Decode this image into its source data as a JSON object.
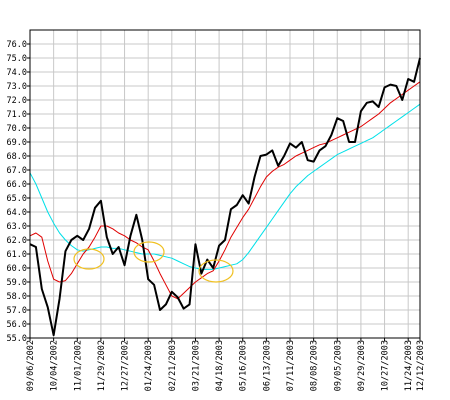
{
  "chart_data": {
    "type": "line",
    "categories": [
      "09/06/2002",
      null,
      null,
      null,
      "10/04/2002",
      null,
      null,
      null,
      "11/01/2002",
      null,
      null,
      null,
      "11/29/2002",
      null,
      null,
      null,
      "12/27/2002",
      null,
      null,
      null,
      "01/24/2003",
      null,
      null,
      null,
      "02/21/2003",
      null,
      null,
      null,
      "03/21/2003",
      null,
      null,
      null,
      "04/18/2003",
      null,
      null,
      null,
      "05/16/2003",
      null,
      null,
      null,
      "06/13/2003",
      null,
      null,
      null,
      "07/11/2003",
      null,
      null,
      null,
      "08/08/2003",
      null,
      null,
      null,
      "09/05/2003",
      null,
      null,
      null,
      "09/29/2003",
      null,
      null,
      null,
      "10/27/2003",
      null,
      null,
      null,
      "11/24/2003",
      null,
      "12/12/2003"
    ],
    "series": [
      {
        "color": "#00e0e8",
        "values": [
          66.8,
          66.0,
          65.0,
          64.0,
          63.2,
          62.5,
          62.0,
          61.6,
          61.3,
          61.2,
          61.3,
          61.4,
          61.5,
          61.5,
          61.4,
          61.4,
          61.3,
          61.2,
          61.1,
          61.0,
          61.0,
          61.0,
          60.9,
          60.8,
          60.7,
          60.5,
          60.3,
          60.1,
          60.0,
          59.9,
          59.9,
          59.9,
          60.0,
          60.1,
          60.2,
          60.3,
          60.6,
          61.1,
          61.7,
          62.3,
          62.9,
          63.5,
          64.1,
          64.7,
          65.3,
          65.8,
          66.2,
          66.6,
          66.9,
          67.2,
          67.5,
          67.8,
          68.1,
          68.3,
          68.5,
          68.7,
          68.9,
          69.1,
          69.3,
          69.6,
          69.9,
          70.2,
          70.5,
          70.8,
          71.1,
          71.4,
          71.7
        ]
      },
      {
        "color": "#e00000",
        "values": [
          62.3,
          62.5,
          62.2,
          60.5,
          59.2,
          59.0,
          59.1,
          59.6,
          60.3,
          61.0,
          61.5,
          62.2,
          63.0,
          63.0,
          62.8,
          62.5,
          62.3,
          62.0,
          61.8,
          61.5,
          61.3,
          60.5,
          59.6,
          58.8,
          58.0,
          57.8,
          58.2,
          58.6,
          59.0,
          59.3,
          59.6,
          59.8,
          60.5,
          61.3,
          62.2,
          62.9,
          63.6,
          64.2,
          65.0,
          65.8,
          66.5,
          66.9,
          67.2,
          67.4,
          67.7,
          68.0,
          68.2,
          68.4,
          68.6,
          68.8,
          68.9,
          69.1,
          69.3,
          69.5,
          69.7,
          69.9,
          70.1,
          70.4,
          70.7,
          71.0,
          71.4,
          71.8,
          72.1,
          72.4,
          72.7,
          73.0,
          73.3
        ]
      },
      {
        "color": "#000000",
        "values": [
          61.7,
          61.5,
          58.5,
          57.2,
          55.2,
          57.8,
          61.2,
          62.0,
          62.3,
          62.0,
          62.8,
          64.3,
          64.8,
          62.2,
          61.0,
          61.5,
          60.2,
          62.3,
          63.8,
          62.0,
          59.2,
          58.8,
          57.0,
          57.4,
          58.3,
          57.9,
          57.1,
          57.4,
          61.7,
          59.6,
          60.6,
          60.0,
          61.6,
          62.0,
          64.2,
          64.5,
          65.2,
          64.6,
          66.5,
          68.0,
          68.1,
          68.4,
          67.3,
          68.0,
          68.9,
          68.6,
          69.0,
          67.7,
          67.6,
          68.4,
          68.7,
          69.5,
          70.7,
          70.5,
          69.0,
          69.0,
          71.2,
          71.8,
          71.9,
          71.5,
          72.9,
          73.1,
          73.0,
          72.0,
          73.5,
          73.3,
          75.0
        ]
      }
    ],
    "ylim": [
      55,
      77
    ],
    "yticks": [
      {
        "value": 55,
        "label": "55.0"
      },
      {
        "value": 56,
        "label": "56.0"
      },
      {
        "value": 57,
        "label": "57.0"
      },
      {
        "value": 58,
        "label": "58.0"
      },
      {
        "value": 59,
        "label": "59.0"
      },
      {
        "value": 60,
        "label": "60.0"
      },
      {
        "value": 61,
        "label": "61.0"
      },
      {
        "value": 62,
        "label": "62.0"
      },
      {
        "value": 63,
        "label": "63.0"
      },
      {
        "value": 64,
        "label": "64.0"
      },
      {
        "value": 65,
        "label": "65.0"
      },
      {
        "value": 66,
        "label": "66.0"
      },
      {
        "value": 67,
        "label": "67.0"
      },
      {
        "value": 68,
        "label": "68.0"
      },
      {
        "value": 69,
        "label": "69.0"
      },
      {
        "value": 70,
        "label": "70.0"
      },
      {
        "value": 71,
        "label": "71.0"
      },
      {
        "value": 72,
        "label": "72.0"
      },
      {
        "value": 73,
        "label": "73.0"
      },
      {
        "value": 74,
        "label": "74.0"
      },
      {
        "value": 75,
        "label": "75.0"
      },
      {
        "value": 76,
        "label": "76.0"
      }
    ],
    "grid": true
  }
}
